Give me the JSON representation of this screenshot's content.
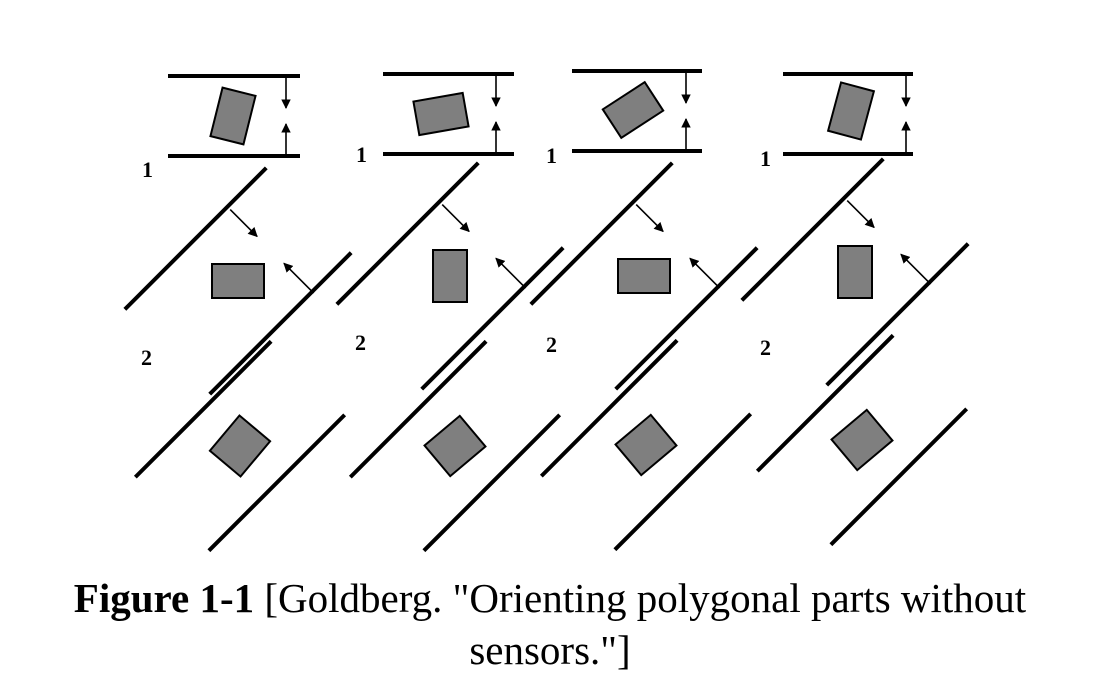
{
  "figure": {
    "columns": [
      {
        "name": "column-1",
        "step1_label": "1",
        "step2_label": "2",
        "rotations": {
          "step1": -76,
          "step2": 0,
          "step3": -50
        }
      },
      {
        "name": "column-2",
        "step1_label": "1",
        "step2_label": "2",
        "rotations": {
          "step1": -10,
          "step2": 90,
          "step3": -40
        }
      },
      {
        "name": "column-3",
        "step1_label": "1",
        "step2_label": "2",
        "rotations": {
          "step1": -33,
          "step2": 0,
          "step3": -40
        }
      },
      {
        "name": "column-4",
        "step1_label": "1",
        "step2_label": "2",
        "rotations": {
          "step1": -75,
          "step2": 90,
          "step3": -40
        }
      }
    ],
    "colors": {
      "part_fill": "#7f7f7f",
      "line": "#000000"
    }
  },
  "caption": {
    "label": "Figure 1-1",
    "text": " [Goldberg. \"Orienting polygonal parts without sensors.\"]"
  }
}
